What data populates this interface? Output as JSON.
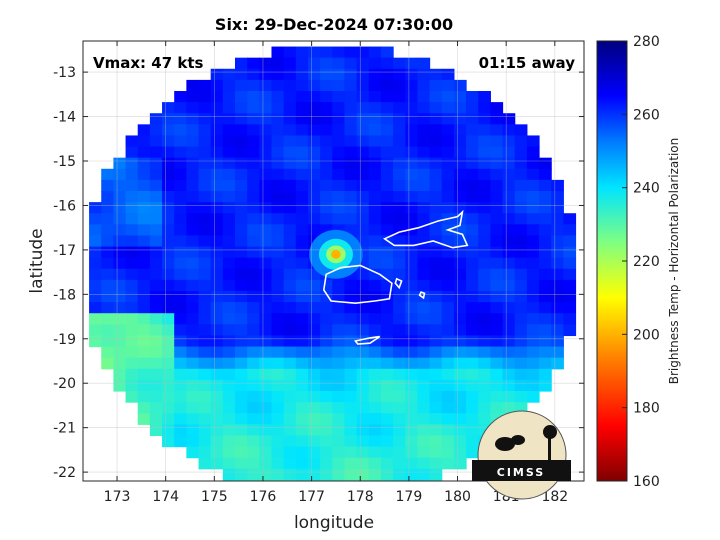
{
  "chart_data": {
    "type": "heatmap",
    "title": "Six: 29-Dec-2024 07:30:00",
    "xlabel": "longitude",
    "ylabel": "latitude",
    "xlim": [
      172.3,
      182.6
    ],
    "ylim": [
      -22.2,
      -12.3
    ],
    "xticks": [
      173,
      174,
      175,
      176,
      177,
      178,
      179,
      180,
      181,
      182
    ],
    "yticks": [
      -13,
      -14,
      -15,
      -16,
      -17,
      -18,
      -19,
      -20,
      -21,
      -22
    ],
    "xtick_labels": [
      "173",
      "174",
      "175",
      "176",
      "177",
      "178",
      "179",
      "180",
      "181",
      "182"
    ],
    "ytick_labels": [
      "-13",
      "-14",
      "-15",
      "-16",
      "-17",
      "-18",
      "-19",
      "-20",
      "-21",
      "-22"
    ],
    "grid": true,
    "colorbar": {
      "label": "Brightness Temp - Horizontal Polarization",
      "range": [
        160,
        280
      ],
      "ticks": [
        160,
        180,
        200,
        220,
        240,
        260,
        280
      ],
      "tick_labels": [
        "160",
        "180",
        "200",
        "220",
        "240",
        "260",
        "280"
      ],
      "stops": [
        {
          "value": 160,
          "color": "#7f0000"
        },
        {
          "value": 175,
          "color": "#ff0000"
        },
        {
          "value": 195,
          "color": "#ff8c00"
        },
        {
          "value": 210,
          "color": "#ffff00"
        },
        {
          "value": 225,
          "color": "#80ff80"
        },
        {
          "value": 240,
          "color": "#00e5ff"
        },
        {
          "value": 252,
          "color": "#0080ff"
        },
        {
          "value": 265,
          "color": "#0000ff"
        },
        {
          "value": 280,
          "color": "#00007f"
        }
      ]
    },
    "vmax_label": "Vmax: 47 kts",
    "time_offset_label": "01:15 away",
    "storm_center": {
      "lon": 177.5,
      "lat": -17.1,
      "min_tb": 200
    },
    "swath_center": {
      "lon": 177.4,
      "lat": -17.5
    },
    "swath_radius_deg": 5.1,
    "field": {
      "background_tb": 262,
      "south_tb": 235,
      "southwest_tb": 228
    },
    "land": [
      {
        "name": "Vanua Levu",
        "points": [
          [
            178.5,
            -16.75
          ],
          [
            178.8,
            -16.6
          ],
          [
            179.2,
            -16.5
          ],
          [
            179.6,
            -16.35
          ],
          [
            180.0,
            -16.25
          ],
          [
            180.1,
            -16.15
          ],
          [
            180.05,
            -16.45
          ],
          [
            179.8,
            -16.55
          ],
          [
            180.1,
            -16.65
          ],
          [
            180.2,
            -16.9
          ],
          [
            179.9,
            -16.95
          ],
          [
            179.5,
            -16.8
          ],
          [
            179.1,
            -16.9
          ],
          [
            178.7,
            -16.9
          ]
        ]
      },
      {
        "name": "Viti Levu",
        "points": [
          [
            177.3,
            -17.55
          ],
          [
            177.6,
            -17.4
          ],
          [
            178.0,
            -17.35
          ],
          [
            178.4,
            -17.55
          ],
          [
            178.65,
            -17.75
          ],
          [
            178.6,
            -18.1
          ],
          [
            178.3,
            -18.15
          ],
          [
            177.9,
            -18.2
          ],
          [
            177.4,
            -18.15
          ],
          [
            177.25,
            -17.9
          ]
        ]
      },
      {
        "name": "Kadavu",
        "points": [
          [
            177.9,
            -19.05
          ],
          [
            178.2,
            -18.98
          ],
          [
            178.4,
            -18.95
          ],
          [
            178.2,
            -19.1
          ],
          [
            177.95,
            -19.12
          ]
        ]
      },
      {
        "name": "Ovalau",
        "points": [
          [
            178.75,
            -17.65
          ],
          [
            178.85,
            -17.7
          ],
          [
            178.8,
            -17.85
          ],
          [
            178.72,
            -17.75
          ]
        ]
      },
      {
        "name": "Gau",
        "points": [
          [
            179.25,
            -17.95
          ],
          [
            179.32,
            -17.98
          ],
          [
            179.3,
            -18.08
          ],
          [
            179.22,
            -18.02
          ]
        ]
      }
    ]
  },
  "logo": {
    "text": "CIMSS"
  }
}
